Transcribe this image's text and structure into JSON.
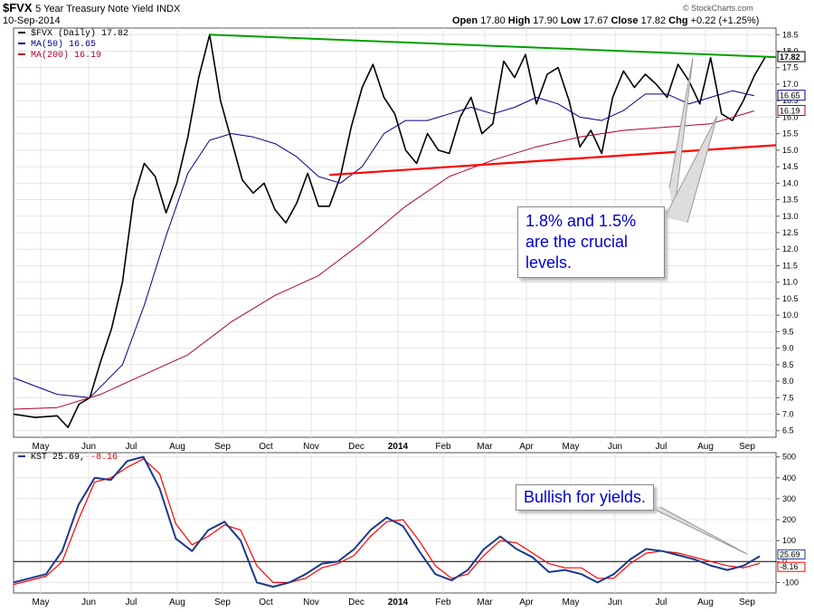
{
  "header": {
    "symbol": "$FVX",
    "name": "5 Year Treasury Note Yield",
    "exchange": "INDX",
    "date": "10-Sep-2014",
    "open_label": "Open",
    "open": "17.80",
    "high_label": "High",
    "high": "17.90",
    "low_label": "Low",
    "low": "17.67",
    "close_label": "Close",
    "close": "17.82",
    "chg_label": "Chg",
    "chg": "+0.22 (+1.25%)",
    "watermark": "© StockCharts.com"
  },
  "legend": {
    "price": "$FVX (Daily) 17.82",
    "ma50": "MA(50) 16.65",
    "ma200": "MA(200) 16.19"
  },
  "kst_legend": {
    "label": "KST 25.69,",
    "signal": "-8.16"
  },
  "annotations": {
    "levels": [
      "1.8% and 1.5%",
      "are the crucial",
      "levels."
    ],
    "bullish": "Bullish for yields."
  },
  "colors": {
    "price": "#000000",
    "ma50": "#00008b",
    "ma200": "#b0002a",
    "resistance": "#00a000",
    "support": "#ff0000",
    "kst": "#1a3a8a",
    "kst_signal": "#ff0000",
    "note_text": "#0000cc"
  },
  "chart_data": [
    {
      "type": "line",
      "panel": "price",
      "x_months": [
        "May",
        "Jun",
        "Jul",
        "Aug",
        "Sep",
        "Oct",
        "Nov",
        "Dec",
        "2014",
        "Feb",
        "Mar",
        "Apr",
        "May",
        "Jun",
        "Jul",
        "Aug",
        "Sep"
      ],
      "y_ticks": [
        "6.5",
        "7.0",
        "7.5",
        "8.0",
        "8.5",
        "9.0",
        "9.5",
        "10.0",
        "10.5",
        "11.0",
        "11.5",
        "12.0",
        "12.5",
        "13.0",
        "13.5",
        "14.0",
        "14.5",
        "15.0",
        "15.5",
        "16.0",
        "16.5",
        "17.0",
        "17.5",
        "18.0",
        "18.5"
      ],
      "ylim": [
        6.3,
        18.7
      ],
      "last_labels": {
        "price": "17.82",
        "ma50": "16.65",
        "ma200": "16.19"
      },
      "series": [
        {
          "name": "$FVX (Daily)",
          "points": [
            [
              0,
              7.0
            ],
            [
              1,
              6.9
            ],
            [
              2,
              6.95
            ],
            [
              2.5,
              6.6
            ],
            [
              3,
              7.3
            ],
            [
              3.5,
              7.5
            ],
            [
              4,
              8.6
            ],
            [
              4.5,
              9.6
            ],
            [
              5,
              11.0
            ],
            [
              5.5,
              13.5
            ],
            [
              6,
              14.6
            ],
            [
              6.5,
              14.2
            ],
            [
              7,
              13.1
            ],
            [
              7.5,
              14.0
            ],
            [
              8,
              15.4
            ],
            [
              8.5,
              17.2
            ],
            [
              9,
              18.5
            ],
            [
              9.5,
              16.5
            ],
            [
              10,
              15.3
            ],
            [
              10.5,
              14.1
            ],
            [
              11,
              13.7
            ],
            [
              11.5,
              14.0
            ],
            [
              12,
              13.2
            ],
            [
              12.5,
              12.8
            ],
            [
              13,
              13.4
            ],
            [
              13.5,
              14.3
            ],
            [
              14,
              13.3
            ],
            [
              14.5,
              13.3
            ],
            [
              15,
              14.2
            ],
            [
              15.5,
              15.7
            ],
            [
              16,
              16.9
            ],
            [
              16.5,
              17.6
            ],
            [
              17,
              16.6
            ],
            [
              17.5,
              16.1
            ],
            [
              18,
              15.0
            ],
            [
              18.5,
              14.6
            ],
            [
              19,
              15.5
            ],
            [
              19.5,
              15.0
            ],
            [
              20,
              14.9
            ],
            [
              20.5,
              16.0
            ],
            [
              21,
              16.6
            ],
            [
              21.5,
              15.5
            ],
            [
              22,
              15.8
            ],
            [
              22.5,
              17.7
            ],
            [
              23,
              17.2
            ],
            [
              23.5,
              17.9
            ],
            [
              24,
              16.4
            ],
            [
              24.5,
              17.3
            ],
            [
              25,
              17.5
            ],
            [
              25.5,
              16.5
            ],
            [
              26,
              15.1
            ],
            [
              26.5,
              15.6
            ],
            [
              27,
              14.9
            ],
            [
              27.5,
              16.6
            ],
            [
              28,
              17.4
            ],
            [
              28.5,
              16.9
            ],
            [
              29,
              17.3
            ],
            [
              29.5,
              17.0
            ],
            [
              30,
              16.6
            ],
            [
              30.5,
              17.6
            ],
            [
              31,
              17.1
            ],
            [
              31.5,
              16.4
            ],
            [
              32,
              17.8
            ],
            [
              32.5,
              16.1
            ],
            [
              33,
              15.9
            ],
            [
              33.5,
              16.5
            ],
            [
              34,
              17.25
            ],
            [
              34.5,
              17.82
            ]
          ]
        },
        {
          "name": "MA(50)",
          "points": [
            [
              0,
              8.1
            ],
            [
              2,
              7.6
            ],
            [
              3.5,
              7.5
            ],
            [
              5,
              8.5
            ],
            [
              6,
              10.3
            ],
            [
              7,
              12.4
            ],
            [
              8,
              14.3
            ],
            [
              9,
              15.3
            ],
            [
              10,
              15.5
            ],
            [
              11,
              15.4
            ],
            [
              12,
              15.2
            ],
            [
              13,
              14.8
            ],
            [
              14,
              14.2
            ],
            [
              15,
              14.0
            ],
            [
              16,
              14.5
            ],
            [
              17,
              15.5
            ],
            [
              18,
              15.9
            ],
            [
              19,
              15.9
            ],
            [
              20,
              16.1
            ],
            [
              21,
              16.3
            ],
            [
              22,
              16.1
            ],
            [
              23,
              16.3
            ],
            [
              24,
              16.6
            ],
            [
              25,
              16.4
            ],
            [
              26,
              16.0
            ],
            [
              27,
              15.9
            ],
            [
              28,
              16.2
            ],
            [
              29,
              16.7
            ],
            [
              30,
              16.7
            ],
            [
              31,
              16.4
            ],
            [
              32,
              16.6
            ],
            [
              33,
              16.8
            ],
            [
              34,
              16.65
            ]
          ]
        },
        {
          "name": "MA(200)",
          "points": [
            [
              0,
              7.15
            ],
            [
              2,
              7.2
            ],
            [
              4,
              7.6
            ],
            [
              6,
              8.2
            ],
            [
              8,
              8.8
            ],
            [
              10,
              9.8
            ],
            [
              12,
              10.6
            ],
            [
              14,
              11.2
            ],
            [
              16,
              12.2
            ],
            [
              18,
              13.3
            ],
            [
              20,
              14.2
            ],
            [
              22,
              14.7
            ],
            [
              24,
              15.1
            ],
            [
              26,
              15.4
            ],
            [
              28,
              15.6
            ],
            [
              30,
              15.7
            ],
            [
              32,
              15.8
            ],
            [
              34,
              16.19
            ]
          ]
        },
        {
          "name": "Resistance",
          "points": [
            [
              9,
              18.5
            ],
            [
              35,
              17.82
            ]
          ]
        },
        {
          "name": "Support",
          "points": [
            [
              14.5,
              14.25
            ],
            [
              35,
              15.15
            ]
          ]
        }
      ]
    },
    {
      "type": "line",
      "panel": "indicator",
      "x_months": [
        "May",
        "Jun",
        "Jul",
        "Aug",
        "Sep",
        "Oct",
        "Nov",
        "Dec",
        "2014",
        "Feb",
        "Mar",
        "Apr",
        "May",
        "Jun",
        "Jul",
        "Aug",
        "Sep"
      ],
      "y_ticks": [
        "-100",
        "0",
        "100",
        "200",
        "300",
        "400",
        "500"
      ],
      "ylim": [
        -150,
        520
      ],
      "last_labels": {
        "kst": "25.69",
        "signal": "-8.16"
      },
      "series": [
        {
          "name": "KST",
          "points": [
            [
              0,
              -100
            ],
            [
              2,
              -60
            ],
            [
              3,
              50
            ],
            [
              4,
              270
            ],
            [
              5,
              400
            ],
            [
              6,
              390
            ],
            [
              7,
              480
            ],
            [
              8,
              500
            ],
            [
              9,
              350
            ],
            [
              10,
              110
            ],
            [
              11,
              50
            ],
            [
              12,
              150
            ],
            [
              13,
              190
            ],
            [
              14,
              100
            ],
            [
              15,
              -100
            ],
            [
              16,
              -120
            ],
            [
              17,
              -100
            ],
            [
              18,
              -60
            ],
            [
              19,
              -10
            ],
            [
              20,
              0
            ],
            [
              21,
              60
            ],
            [
              22,
              150
            ],
            [
              23,
              210
            ],
            [
              24,
              170
            ],
            [
              25,
              50
            ],
            [
              26,
              -60
            ],
            [
              27,
              -90
            ],
            [
              28,
              -40
            ],
            [
              29,
              60
            ],
            [
              30,
              120
            ],
            [
              31,
              60
            ],
            [
              32,
              20
            ],
            [
              33,
              -50
            ],
            [
              34,
              -40
            ],
            [
              35,
              -60
            ],
            [
              36,
              -100
            ],
            [
              37,
              -60
            ],
            [
              38,
              10
            ],
            [
              39,
              60
            ],
            [
              40,
              50
            ],
            [
              41,
              30
            ],
            [
              42,
              10
            ],
            [
              43,
              -20
            ],
            [
              44,
              -40
            ],
            [
              45,
              -20
            ],
            [
              46,
              25.69
            ]
          ]
        },
        {
          "name": "Signal",
          "points": [
            [
              0,
              -110
            ],
            [
              2,
              -70
            ],
            [
              3,
              0
            ],
            [
              4,
              200
            ],
            [
              5,
              380
            ],
            [
              6,
              400
            ],
            [
              7,
              450
            ],
            [
              8,
              490
            ],
            [
              9,
              420
            ],
            [
              10,
              180
            ],
            [
              11,
              80
            ],
            [
              12,
              120
            ],
            [
              13,
              175
            ],
            [
              14,
              150
            ],
            [
              15,
              -20
            ],
            [
              16,
              -100
            ],
            [
              17,
              -100
            ],
            [
              18,
              -80
            ],
            [
              19,
              -30
            ],
            [
              20,
              -10
            ],
            [
              21,
              30
            ],
            [
              22,
              120
            ],
            [
              23,
              190
            ],
            [
              24,
              200
            ],
            [
              25,
              100
            ],
            [
              26,
              -20
            ],
            [
              27,
              -80
            ],
            [
              28,
              -60
            ],
            [
              29,
              30
            ],
            [
              30,
              100
            ],
            [
              31,
              90
            ],
            [
              32,
              40
            ],
            [
              33,
              -10
            ],
            [
              34,
              -30
            ],
            [
              35,
              -30
            ],
            [
              36,
              -80
            ],
            [
              37,
              -80
            ],
            [
              38,
              -10
            ],
            [
              39,
              40
            ],
            [
              40,
              50
            ],
            [
              41,
              40
            ],
            [
              42,
              20
            ],
            [
              43,
              0
            ],
            [
              44,
              -20
            ],
            [
              45,
              -30
            ],
            [
              46,
              -8.16
            ]
          ]
        }
      ]
    }
  ]
}
